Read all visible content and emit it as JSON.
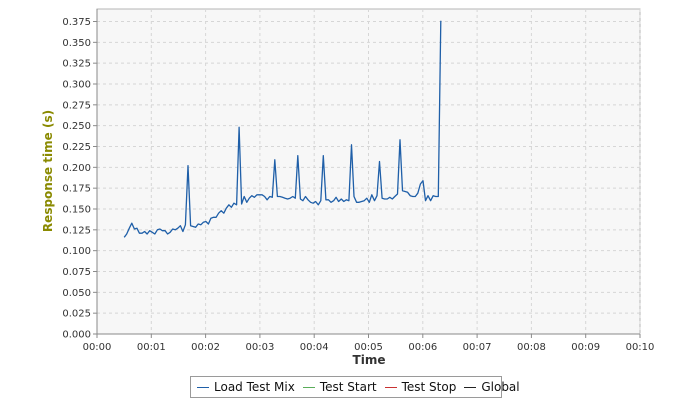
{
  "chart_data": {
    "type": "line",
    "xlabel": "Time",
    "ylabel": "Response time (s)",
    "xlim": [
      0,
      600
    ],
    "ylim": [
      0,
      0.39
    ],
    "x_tick_labels": [
      "00:00",
      "00:01",
      "00:02",
      "00:03",
      "00:04",
      "00:05",
      "00:06",
      "00:07",
      "00:08",
      "00:09",
      "00:10"
    ],
    "y_tick_labels": [
      "0.000",
      "0.025",
      "0.050",
      "0.075",
      "0.100",
      "0.125",
      "0.150",
      "0.175",
      "0.200",
      "0.225",
      "0.250",
      "0.275",
      "0.300",
      "0.325",
      "0.350",
      "0.375"
    ],
    "grid": true,
    "legend_placement": "bottom",
    "series": [
      {
        "name": "Load Test Mix",
        "color": "#1f5fa8",
        "points": [
          [
            30.0,
            0.116
          ],
          [
            32.8,
            0.12
          ],
          [
            35.7,
            0.127
          ],
          [
            38.5,
            0.133
          ],
          [
            41.3,
            0.126
          ],
          [
            44.1,
            0.127
          ],
          [
            46.9,
            0.121
          ],
          [
            49.8,
            0.121
          ],
          [
            52.6,
            0.123
          ],
          [
            55.4,
            0.12
          ],
          [
            58.2,
            0.124
          ],
          [
            61.1,
            0.122
          ],
          [
            63.9,
            0.12
          ],
          [
            66.7,
            0.125
          ],
          [
            69.5,
            0.126
          ],
          [
            72.3,
            0.124
          ],
          [
            75.2,
            0.124
          ],
          [
            78.0,
            0.12
          ],
          [
            80.8,
            0.122
          ],
          [
            83.6,
            0.126
          ],
          [
            86.4,
            0.125
          ],
          [
            89.3,
            0.127
          ],
          [
            92.1,
            0.13
          ],
          [
            94.9,
            0.123
          ],
          [
            97.7,
            0.131
          ],
          [
            100.6,
            0.202
          ],
          [
            103.4,
            0.13
          ],
          [
            106.2,
            0.129
          ],
          [
            109.0,
            0.128
          ],
          [
            111.8,
            0.132
          ],
          [
            114.7,
            0.131
          ],
          [
            117.5,
            0.134
          ],
          [
            120.3,
            0.135
          ],
          [
            123.1,
            0.132
          ],
          [
            125.9,
            0.139
          ],
          [
            128.8,
            0.14
          ],
          [
            131.6,
            0.14
          ],
          [
            134.4,
            0.145
          ],
          [
            137.2,
            0.148
          ],
          [
            140.1,
            0.145
          ],
          [
            142.9,
            0.151
          ],
          [
            145.7,
            0.155
          ],
          [
            148.5,
            0.152
          ],
          [
            151.3,
            0.157
          ],
          [
            154.2,
            0.155
          ],
          [
            157.0,
            0.248
          ],
          [
            159.8,
            0.156
          ],
          [
            162.6,
            0.165
          ],
          [
            165.5,
            0.158
          ],
          [
            168.3,
            0.163
          ],
          [
            171.1,
            0.166
          ],
          [
            173.9,
            0.164
          ],
          [
            176.7,
            0.167
          ],
          [
            179.6,
            0.167
          ],
          [
            182.4,
            0.167
          ],
          [
            185.2,
            0.165
          ],
          [
            188.0,
            0.161
          ],
          [
            190.9,
            0.165
          ],
          [
            193.7,
            0.164
          ],
          [
            196.5,
            0.209
          ],
          [
            199.3,
            0.165
          ],
          [
            202.1,
            0.165
          ],
          [
            205.0,
            0.164
          ],
          [
            207.8,
            0.163
          ],
          [
            210.6,
            0.162
          ],
          [
            213.4,
            0.163
          ],
          [
            216.3,
            0.165
          ],
          [
            219.1,
            0.163
          ],
          [
            221.9,
            0.214
          ],
          [
            224.7,
            0.162
          ],
          [
            227.5,
            0.16
          ],
          [
            230.4,
            0.165
          ],
          [
            233.2,
            0.161
          ],
          [
            236.0,
            0.158
          ],
          [
            238.8,
            0.157
          ],
          [
            241.6,
            0.159
          ],
          [
            244.5,
            0.155
          ],
          [
            247.3,
            0.16
          ],
          [
            250.1,
            0.214
          ],
          [
            252.9,
            0.161
          ],
          [
            255.8,
            0.161
          ],
          [
            258.6,
            0.158
          ],
          [
            261.4,
            0.16
          ],
          [
            264.2,
            0.164
          ],
          [
            267.0,
            0.159
          ],
          [
            269.9,
            0.162
          ],
          [
            272.7,
            0.159
          ],
          [
            275.5,
            0.161
          ],
          [
            278.3,
            0.16
          ],
          [
            281.2,
            0.227
          ],
          [
            284.0,
            0.165
          ],
          [
            286.8,
            0.158
          ],
          [
            289.6,
            0.158
          ],
          [
            292.4,
            0.159
          ],
          [
            295.3,
            0.16
          ],
          [
            298.1,
            0.163
          ],
          [
            300.9,
            0.158
          ],
          [
            303.7,
            0.167
          ],
          [
            306.6,
            0.16
          ],
          [
            309.4,
            0.166
          ],
          [
            312.2,
            0.207
          ],
          [
            315.0,
            0.163
          ],
          [
            317.8,
            0.162
          ],
          [
            320.7,
            0.162
          ],
          [
            323.5,
            0.164
          ],
          [
            326.3,
            0.162
          ],
          [
            329.1,
            0.165
          ],
          [
            332.0,
            0.168
          ],
          [
            334.8,
            0.233
          ],
          [
            337.6,
            0.172
          ],
          [
            340.4,
            0.171
          ],
          [
            343.2,
            0.17
          ],
          [
            346.1,
            0.166
          ],
          [
            348.9,
            0.165
          ],
          [
            351.7,
            0.165
          ],
          [
            354.5,
            0.169
          ],
          [
            357.4,
            0.18
          ],
          [
            360.2,
            0.184
          ],
          [
            363.0,
            0.16
          ],
          [
            365.8,
            0.166
          ],
          [
            368.6,
            0.16
          ],
          [
            371.5,
            0.166
          ],
          [
            374.3,
            0.165
          ],
          [
            377.1,
            0.165
          ],
          [
            379.9,
            0.376
          ]
        ]
      },
      {
        "name": "Test Start",
        "color": "#5aad5a",
        "points": []
      },
      {
        "name": "Test Stop",
        "color": "#c83232",
        "points": []
      },
      {
        "name": "Global",
        "color": "#222222",
        "points": []
      }
    ]
  }
}
